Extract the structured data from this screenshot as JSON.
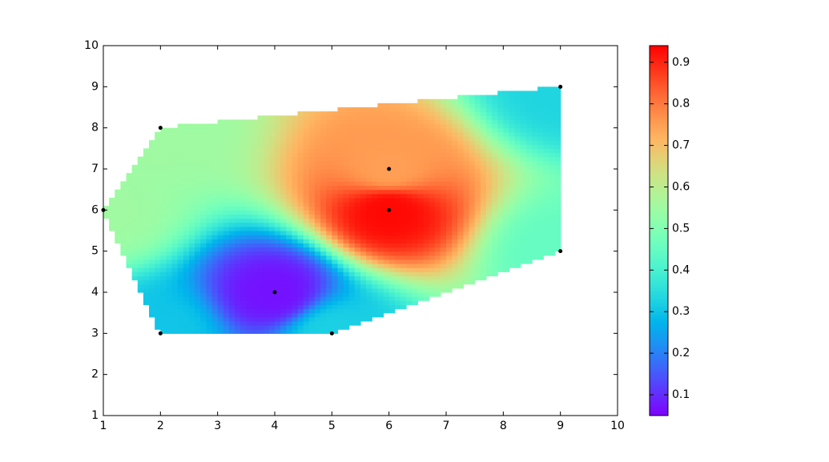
{
  "chart_data": {
    "type": "contour",
    "x": [
      1,
      2,
      2,
      4,
      5,
      6,
      6,
      9,
      9
    ],
    "y": [
      6,
      3,
      8,
      4,
      3,
      6,
      7,
      5,
      9
    ],
    "z": [
      0.55,
      0.3,
      0.55,
      0.07,
      0.32,
      0.93,
      0.75,
      0.45,
      0.33
    ],
    "xlim": [
      1,
      10
    ],
    "ylim": [
      1,
      10
    ],
    "xticks": [
      1,
      2,
      3,
      4,
      5,
      6,
      7,
      8,
      9,
      10
    ],
    "yticks": [
      1,
      2,
      3,
      4,
      5,
      6,
      7,
      8,
      9,
      10
    ],
    "colormap": "rainbow",
    "colorbar": {
      "clim": [
        0.05,
        0.94
      ],
      "ticks": [
        0.1,
        0.2,
        0.3,
        0.4,
        0.5,
        0.6,
        0.7,
        0.8,
        0.9
      ]
    }
  }
}
